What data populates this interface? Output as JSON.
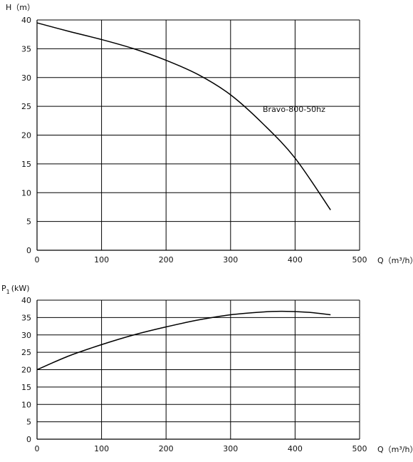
{
  "chart_data": [
    {
      "type": "line",
      "ylabel": "H（m）",
      "xlabel": "Q（m³/h）",
      "xlim": [
        0,
        500
      ],
      "ylim": [
        0,
        40
      ],
      "x_ticks": [
        0,
        100,
        200,
        300,
        400,
        500
      ],
      "y_ticks": [
        0,
        5,
        10,
        15,
        20,
        25,
        30,
        35,
        40
      ],
      "grid": true,
      "series": [
        {
          "name": "Bravo-800-50hz",
          "x": [
            0,
            50,
            100,
            150,
            200,
            250,
            300,
            350,
            400,
            455
          ],
          "y": [
            39.5,
            38.0,
            36.6,
            35.0,
            33.0,
            30.5,
            27.0,
            22.0,
            16.0,
            7.0
          ]
        }
      ]
    },
    {
      "type": "line",
      "ylabel": "P",
      "ylabel_sub": "1",
      "ylabel_unit": "(kW)",
      "xlabel": "Q（m³/h）",
      "xlim": [
        0,
        500
      ],
      "ylim": [
        0,
        40
      ],
      "x_ticks": [
        0,
        100,
        200,
        300,
        400,
        500
      ],
      "y_ticks": [
        0,
        5,
        10,
        15,
        20,
        25,
        30,
        35,
        40
      ],
      "grid": true,
      "series": [
        {
          "x": [
            0,
            50,
            100,
            150,
            200,
            250,
            300,
            350,
            380,
            420,
            455
          ],
          "y": [
            20.0,
            24.0,
            27.2,
            30.0,
            32.3,
            34.3,
            35.8,
            36.6,
            36.8,
            36.5,
            35.8
          ]
        }
      ]
    }
  ]
}
